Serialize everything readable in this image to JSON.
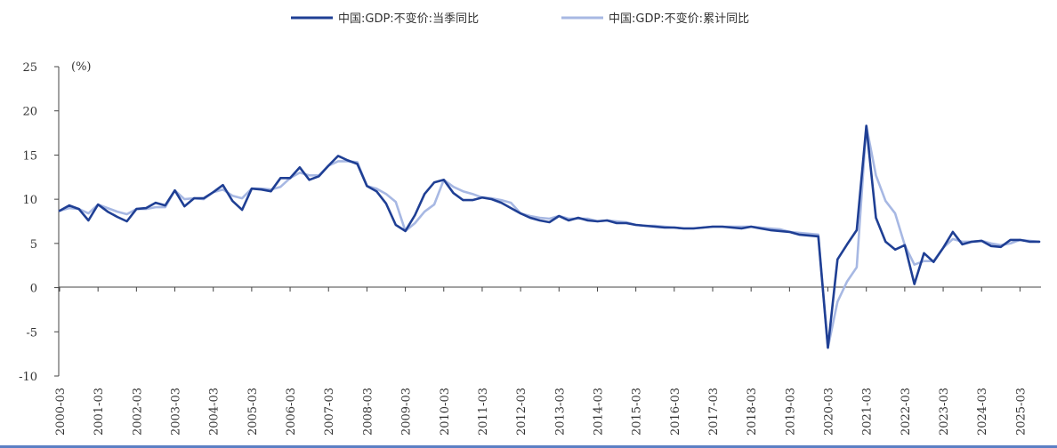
{
  "chart_data": {
    "type": "line",
    "unit_label": "(%)",
    "xlabel": "",
    "ylabel": "",
    "ylim": [
      -10,
      25
    ],
    "yticks": [
      -10,
      -5,
      0,
      5,
      10,
      15,
      20,
      25
    ],
    "x_tick_labels": [
      "2000-03",
      "2001-03",
      "2002-03",
      "2003-03",
      "2004-03",
      "2005-03",
      "2006-03",
      "2007-03",
      "2008-03",
      "2009-03",
      "2010-03",
      "2011-03",
      "2012-03",
      "2013-03",
      "2014-03",
      "2015-03",
      "2016-03",
      "2017-03",
      "2018-03",
      "2019-03",
      "2020-03",
      "2021-03",
      "2022-03",
      "2023-03",
      "2024-03",
      "2025-03"
    ],
    "start_quarter": "2000-03",
    "grid": false,
    "legend_position": "top-center",
    "colors": {
      "quarterly": "#1f3f94",
      "cumulative": "#a7b8e3",
      "axis": "#444444"
    },
    "series": [
      {
        "name": "中国:GDP:不变价:当季同比",
        "values": [
          8.7,
          9.3,
          8.9,
          7.6,
          9.4,
          8.6,
          8.0,
          7.5,
          8.9,
          9.0,
          9.6,
          9.3,
          11.0,
          9.2,
          10.1,
          10.1,
          10.8,
          11.6,
          9.8,
          8.8,
          11.2,
          11.1,
          10.9,
          12.4,
          12.4,
          13.6,
          12.2,
          12.6,
          13.8,
          14.9,
          14.4,
          14.0,
          11.5,
          10.9,
          9.5,
          7.1,
          6.4,
          8.2,
          10.6,
          11.9,
          12.2,
          10.7,
          9.9,
          9.9,
          10.2,
          10.0,
          9.6,
          9.0,
          8.4,
          7.9,
          7.6,
          7.4,
          8.1,
          7.6,
          7.9,
          7.6,
          7.5,
          7.6,
          7.3,
          7.3,
          7.1,
          7.0,
          6.9,
          6.8,
          6.8,
          6.7,
          6.7,
          6.8,
          6.9,
          6.9,
          6.8,
          6.7,
          6.9,
          6.7,
          6.5,
          6.4,
          6.3,
          6.0,
          5.9,
          5.8,
          -6.8,
          3.2,
          4.9,
          6.5,
          18.3,
          7.9,
          5.2,
          4.3,
          4.8,
          0.4,
          3.9,
          2.9,
          4.5,
          6.3,
          4.9,
          5.2,
          5.3,
          4.7,
          4.6,
          5.4,
          5.4,
          5.2,
          5.2
        ],
        "data_labels": []
      },
      {
        "name": "中国:GDP:不变价:累计同比",
        "values": [
          8.7,
          9.0,
          8.9,
          8.4,
          9.4,
          9.0,
          8.6,
          8.3,
          8.9,
          8.9,
          9.1,
          9.1,
          11.0,
          10.0,
          10.1,
          10.0,
          10.8,
          11.1,
          10.4,
          10.1,
          11.2,
          11.2,
          11.1,
          11.4,
          12.4,
          13.0,
          12.7,
          12.7,
          13.8,
          14.3,
          14.3,
          14.2,
          11.5,
          11.2,
          10.6,
          9.7,
          6.4,
          7.3,
          8.6,
          9.4,
          12.2,
          11.4,
          10.9,
          10.6,
          10.2,
          10.1,
          9.9,
          9.6,
          8.4,
          8.1,
          7.9,
          7.8,
          8.1,
          7.8,
          7.8,
          7.8,
          7.5,
          7.6,
          7.5,
          7.4,
          7.1,
          7.0,
          7.0,
          6.9,
          6.8,
          6.7,
          6.7,
          6.8,
          6.9,
          6.9,
          6.9,
          6.9,
          6.9,
          6.8,
          6.7,
          6.6,
          6.3,
          6.2,
          6.1,
          6.0,
          -6.8,
          -1.6,
          0.7,
          2.3,
          18.3,
          12.7,
          9.8,
          8.4,
          4.8,
          2.6,
          3.0,
          3.0,
          4.5,
          5.5,
          5.2,
          5.2,
          5.3,
          5.0,
          4.8,
          5.0,
          5.4,
          5.3,
          5.2
        ],
        "data_labels": []
      }
    ]
  }
}
